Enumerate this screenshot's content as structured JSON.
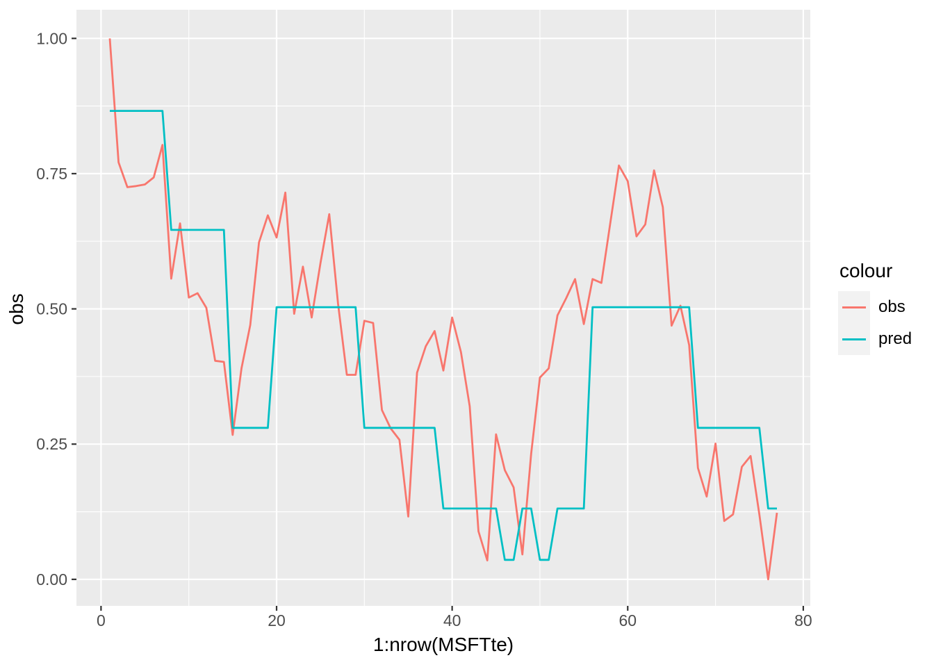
{
  "chart_data": {
    "type": "line",
    "title": "",
    "xlabel": "1:nrow(MSFTte)",
    "ylabel": "obs",
    "legend_title": "colour",
    "legend_position": "right",
    "grid": "on",
    "panel_bg": "#EBEBEB",
    "grid_color": "#FFFFFF",
    "tick_color": "#333333",
    "tick_label_color": "#4D4D4D",
    "xlim": [
      -2.8,
      80.8
    ],
    "ylim": [
      -0.049,
      1.053
    ],
    "x_major_ticks": [
      0,
      20,
      40,
      60,
      80
    ],
    "x_tick_labels": [
      "0",
      "20",
      "40",
      "60",
      "80"
    ],
    "x_minor_ticks": [
      10,
      30,
      50,
      70
    ],
    "y_major_ticks": [
      0,
      0.25,
      0.5,
      0.75,
      1
    ],
    "y_tick_labels": [
      "0.00",
      "0.25",
      "0.50",
      "0.75",
      "1.00"
    ],
    "y_minor_ticks": [
      0.125,
      0.375,
      0.625,
      0.875
    ],
    "x": [
      1,
      2,
      3,
      4,
      5,
      6,
      7,
      8,
      9,
      10,
      11,
      12,
      13,
      14,
      15,
      16,
      17,
      18,
      19,
      20,
      21,
      22,
      23,
      24,
      25,
      26,
      27,
      28,
      29,
      30,
      31,
      32,
      33,
      34,
      35,
      36,
      37,
      38,
      39,
      40,
      41,
      42,
      43,
      44,
      45,
      46,
      47,
      48,
      49,
      50,
      51,
      52,
      53,
      54,
      55,
      56,
      57,
      58,
      59,
      60,
      61,
      62,
      63,
      64,
      65,
      66,
      67,
      68,
      69,
      70,
      71,
      72,
      73,
      74,
      75,
      76,
      77
    ],
    "series": [
      {
        "name": "obs",
        "color": "#F8766D",
        "values": [
          1.0,
          0.771,
          0.725,
          0.727,
          0.73,
          0.743,
          0.803,
          0.556,
          0.658,
          0.521,
          0.529,
          0.502,
          0.404,
          0.402,
          0.267,
          0.39,
          0.47,
          0.623,
          0.673,
          0.632,
          0.715,
          0.491,
          0.578,
          0.484,
          0.585,
          0.675,
          0.51,
          0.378,
          0.378,
          0.478,
          0.474,
          0.313,
          0.279,
          0.258,
          0.116,
          0.382,
          0.431,
          0.459,
          0.386,
          0.484,
          0.42,
          0.32,
          0.089,
          0.035,
          0.268,
          0.202,
          0.17,
          0.046,
          0.232,
          0.373,
          0.39,
          0.488,
          0.52,
          0.555,
          0.472,
          0.555,
          0.548,
          0.657,
          0.765,
          0.736,
          0.634,
          0.656,
          0.756,
          0.688,
          0.469,
          0.506,
          0.433,
          0.206,
          0.153,
          0.251,
          0.108,
          0.12,
          0.208,
          0.228,
          0.12,
          0.0,
          0.123
        ]
      },
      {
        "name": "pred",
        "color": "#00BFC4",
        "values": [
          0.866,
          0.866,
          0.866,
          0.866,
          0.866,
          0.866,
          0.866,
          0.646,
          0.646,
          0.646,
          0.646,
          0.646,
          0.646,
          0.646,
          0.28,
          0.28,
          0.28,
          0.28,
          0.28,
          0.503,
          0.503,
          0.503,
          0.503,
          0.503,
          0.503,
          0.503,
          0.503,
          0.503,
          0.503,
          0.28,
          0.28,
          0.28,
          0.28,
          0.28,
          0.28,
          0.28,
          0.28,
          0.28,
          0.131,
          0.131,
          0.131,
          0.131,
          0.131,
          0.131,
          0.131,
          0.036,
          0.036,
          0.131,
          0.131,
          0.036,
          0.036,
          0.131,
          0.131,
          0.131,
          0.131,
          0.503,
          0.503,
          0.503,
          0.503,
          0.503,
          0.503,
          0.503,
          0.503,
          0.503,
          0.503,
          0.503,
          0.503,
          0.28,
          0.28,
          0.28,
          0.28,
          0.28,
          0.28,
          0.28,
          0.28,
          0.131,
          0.131
        ]
      }
    ]
  }
}
